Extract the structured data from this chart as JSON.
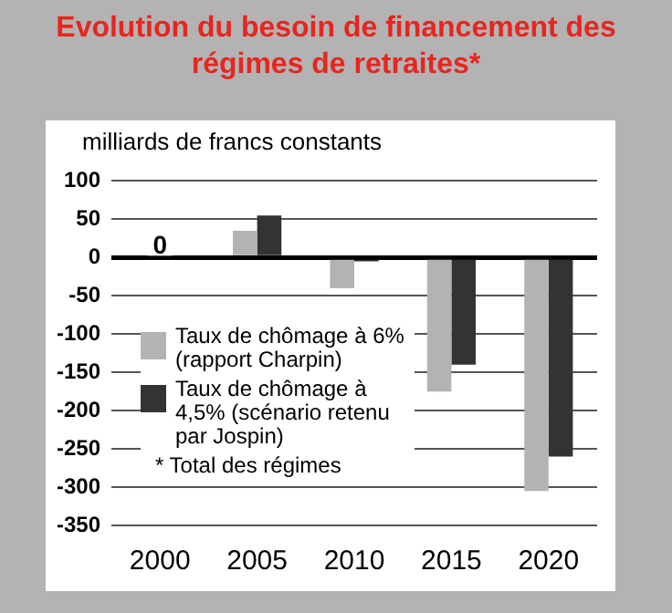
{
  "chart_data": {
    "type": "bar",
    "title": "Evolution du besoin de financement des régimes de retraites*",
    "ylabel": "milliards de francs constants",
    "categories": [
      "2000",
      "2005",
      "2010",
      "2015",
      "2020"
    ],
    "series": [
      {
        "name": "Taux de chômage à 6% (rapport Charpin)",
        "color": "#b3b3b3",
        "values": [
          0,
          35,
          -40,
          -175,
          -305
        ]
      },
      {
        "name": "Taux de chômage à 4,5% (scénario retenu par Jospin)",
        "color": "#333333",
        "values": [
          0,
          55,
          -5,
          -140,
          -260
        ]
      }
    ],
    "ylim": [
      -350,
      100
    ],
    "yticks": [
      -350,
      -300,
      -250,
      -200,
      -150,
      -100,
      -50,
      0,
      50,
      100
    ],
    "grid": "y",
    "legend": "bottom left",
    "annotations": [
      {
        "text": "0",
        "x": "2000",
        "y": 0
      },
      "* Total des régimes"
    ]
  }
}
